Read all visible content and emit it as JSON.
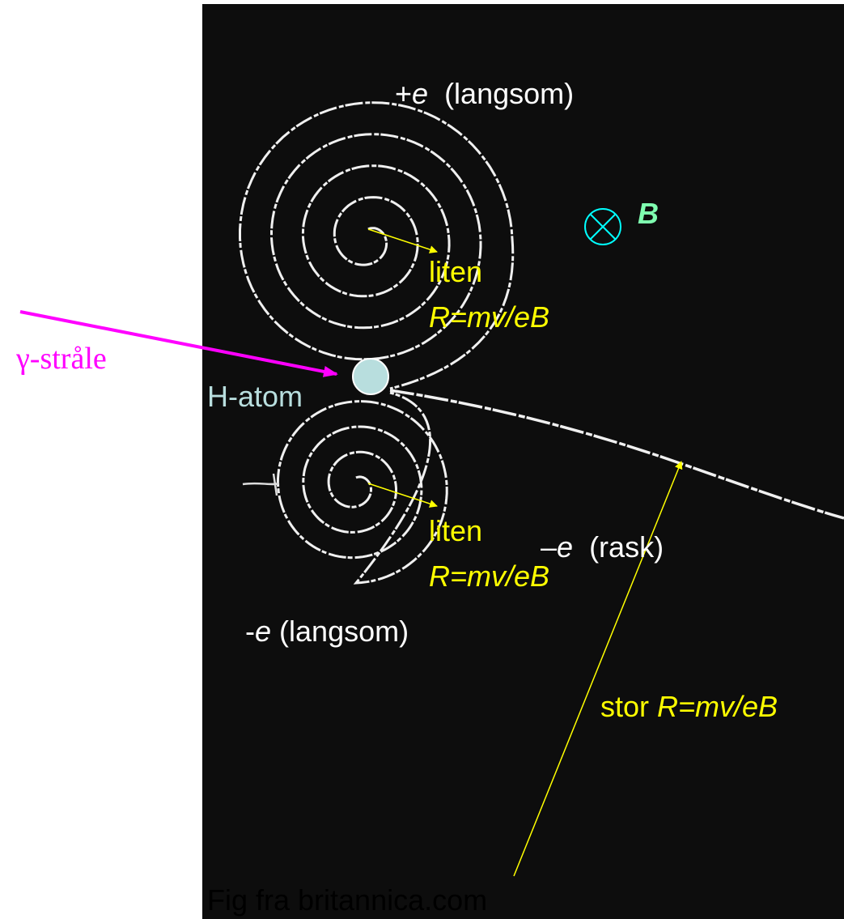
{
  "labels": {
    "positron": [
      "+",
      "e",
      "  (langsom)"
    ],
    "field": "B",
    "upper_size": "liten",
    "upper_formula": "R=mv/eB",
    "gamma": "γ-stråle",
    "atom": "H-atom",
    "lower_size": "liten",
    "lower_formula": "R=mv/eB",
    "fast_electron": [
      "–",
      "e",
      "  (rask)"
    ],
    "slow_electron": [
      "-",
      "e",
      " (langsom)"
    ],
    "big_radius": [
      "stor ",
      "R=mv/eB"
    ],
    "credit": "Fig fra britannica.com"
  }
}
